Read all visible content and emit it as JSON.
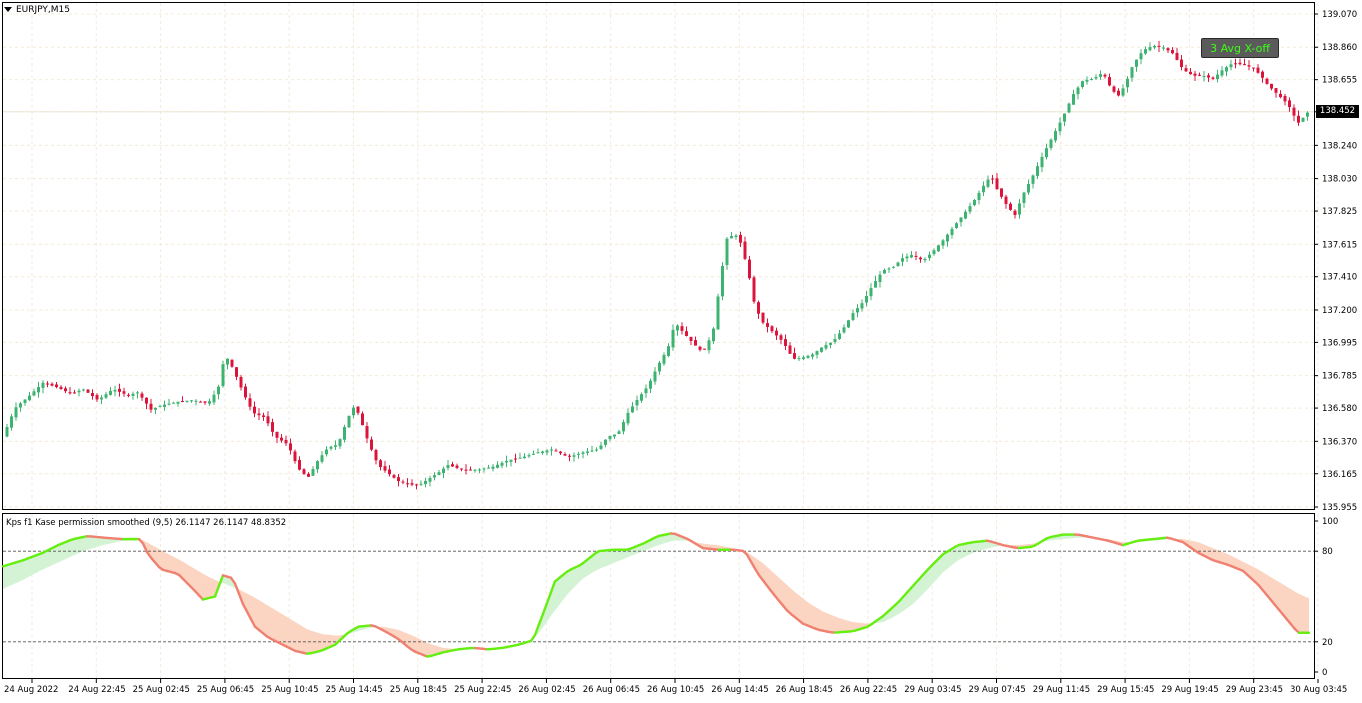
{
  "chart_header": {
    "symbol_label": "EURJPY,M15"
  },
  "indicator_header": {
    "label": "Kps f1 Kase permission smoothed (9,5) 26.1147 26.1147 48.8352"
  },
  "signal_button": {
    "label": "3 Avg X-off"
  },
  "current_price": {
    "label": "138.452"
  },
  "colors": {
    "bull": "#3cb371",
    "bear": "#dc143c",
    "grid": "#f3ead8",
    "fast_up": "#66ee11",
    "fast_down": "#f08070",
    "fill_up": "#d4f3d4",
    "fill_down": "#fbd5c2"
  },
  "chart_data": [
    {
      "type": "candlestick",
      "symbol": "EURJPY",
      "timeframe": "M15",
      "y_ticks": [
        "139.070",
        "138.860",
        "138.655",
        "138.452",
        "138.240",
        "138.030",
        "137.825",
        "137.615",
        "137.410",
        "137.200",
        "136.995",
        "136.785",
        "136.580",
        "136.370",
        "136.165",
        "135.955"
      ],
      "ylim": [
        135.955,
        139.07
      ],
      "x_ticks": [
        "24 Aug 2022",
        "24 Aug 22:45",
        "25 Aug 02:45",
        "25 Aug 06:45",
        "25 Aug 10:45",
        "25 Aug 14:45",
        "25 Aug 18:45",
        "25 Aug 22:45",
        "26 Aug 02:45",
        "26 Aug 06:45",
        "26 Aug 10:45",
        "26 Aug 14:45",
        "26 Aug 18:45",
        "26 Aug 22:45",
        "29 Aug 03:45",
        "29 Aug 07:45",
        "29 Aug 11:45",
        "29 Aug 15:45",
        "29 Aug 19:45",
        "29 Aug 23:45",
        "30 Aug 03:45"
      ],
      "close_path": [
        [
          0,
          136.4
        ],
        [
          12,
          136.58
        ],
        [
          25,
          136.65
        ],
        [
          40,
          136.74
        ],
        [
          55,
          136.71
        ],
        [
          68,
          136.67
        ],
        [
          80,
          136.7
        ],
        [
          95,
          136.63
        ],
        [
          110,
          136.7
        ],
        [
          125,
          136.66
        ],
        [
          135,
          136.68
        ],
        [
          148,
          136.57
        ],
        [
          160,
          136.6
        ],
        [
          175,
          136.62
        ],
        [
          190,
          136.63
        ],
        [
          205,
          136.61
        ],
        [
          215,
          136.7
        ],
        [
          222,
          136.92
        ],
        [
          230,
          136.83
        ],
        [
          240,
          136.68
        ],
        [
          250,
          136.55
        ],
        [
          262,
          136.52
        ],
        [
          272,
          136.4
        ],
        [
          285,
          136.35
        ],
        [
          295,
          136.2
        ],
        [
          305,
          136.14
        ],
        [
          315,
          136.25
        ],
        [
          325,
          136.33
        ],
        [
          335,
          136.35
        ],
        [
          345,
          136.52
        ],
        [
          352,
          136.6
        ],
        [
          358,
          136.5
        ],
        [
          365,
          136.37
        ],
        [
          375,
          136.22
        ],
        [
          385,
          136.17
        ],
        [
          395,
          136.12
        ],
        [
          405,
          136.1
        ],
        [
          415,
          136.09
        ],
        [
          425,
          136.13
        ],
        [
          435,
          136.17
        ],
        [
          445,
          136.22
        ],
        [
          460,
          136.19
        ],
        [
          475,
          136.19
        ],
        [
          490,
          136.21
        ],
        [
          505,
          136.25
        ],
        [
          520,
          136.27
        ],
        [
          535,
          136.3
        ],
        [
          550,
          136.32
        ],
        [
          565,
          136.27
        ],
        [
          580,
          136.3
        ],
        [
          595,
          136.32
        ],
        [
          605,
          136.4
        ],
        [
          615,
          136.42
        ],
        [
          625,
          136.55
        ],
        [
          635,
          136.64
        ],
        [
          645,
          136.72
        ],
        [
          655,
          136.85
        ],
        [
          665,
          136.96
        ],
        [
          672,
          137.12
        ],
        [
          680,
          137.06
        ],
        [
          690,
          136.99
        ],
        [
          700,
          136.93
        ],
        [
          710,
          137.06
        ],
        [
          718,
          137.42
        ],
        [
          724,
          137.65
        ],
        [
          732,
          137.68
        ],
        [
          738,
          137.62
        ],
        [
          745,
          137.45
        ],
        [
          752,
          137.22
        ],
        [
          760,
          137.12
        ],
        [
          770,
          137.06
        ],
        [
          780,
          137.0
        ],
        [
          790,
          136.89
        ],
        [
          800,
          136.9
        ],
        [
          810,
          136.92
        ],
        [
          820,
          136.97
        ],
        [
          830,
          137.0
        ],
        [
          840,
          137.08
        ],
        [
          850,
          137.18
        ],
        [
          860,
          137.25
        ],
        [
          870,
          137.36
        ],
        [
          880,
          137.45
        ],
        [
          890,
          137.47
        ],
        [
          900,
          137.53
        ],
        [
          910,
          137.55
        ],
        [
          920,
          137.51
        ],
        [
          930,
          137.57
        ],
        [
          940,
          137.64
        ],
        [
          950,
          137.72
        ],
        [
          960,
          137.8
        ],
        [
          970,
          137.88
        ],
        [
          980,
          137.98
        ],
        [
          988,
          138.05
        ],
        [
          995,
          137.95
        ],
        [
          1005,
          137.85
        ],
        [
          1012,
          137.8
        ],
        [
          1020,
          137.93
        ],
        [
          1030,
          138.05
        ],
        [
          1040,
          138.18
        ],
        [
          1050,
          138.3
        ],
        [
          1060,
          138.42
        ],
        [
          1070,
          138.56
        ],
        [
          1080,
          138.65
        ],
        [
          1090,
          138.66
        ],
        [
          1100,
          138.7
        ],
        [
          1108,
          138.6
        ],
        [
          1115,
          138.55
        ],
        [
          1122,
          138.62
        ],
        [
          1130,
          138.75
        ],
        [
          1140,
          138.84
        ],
        [
          1150,
          138.87
        ],
        [
          1160,
          138.86
        ],
        [
          1170,
          138.82
        ],
        [
          1180,
          138.72
        ],
        [
          1190,
          138.68
        ],
        [
          1200,
          138.68
        ],
        [
          1210,
          138.66
        ],
        [
          1220,
          138.72
        ],
        [
          1230,
          138.76
        ],
        [
          1240,
          138.75
        ],
        [
          1250,
          138.73
        ],
        [
          1258,
          138.68
        ],
        [
          1265,
          138.62
        ],
        [
          1275,
          138.56
        ],
        [
          1285,
          138.5
        ],
        [
          1295,
          138.38
        ],
        [
          1305,
          138.45
        ]
      ]
    },
    {
      "type": "line",
      "title": "Kps f1 Kase permission smoothed (9,5)",
      "values_shown": [
        26.1147,
        26.1147,
        48.8352
      ],
      "y_ticks": [
        "100",
        "80",
        "20",
        "0"
      ],
      "levels": [
        80,
        20
      ],
      "ylim": [
        0,
        100
      ],
      "fast": [
        [
          0,
          70
        ],
        [
          20,
          74
        ],
        [
          40,
          79
        ],
        [
          55,
          84
        ],
        [
          70,
          88
        ],
        [
          85,
          90
        ],
        [
          100,
          89
        ],
        [
          120,
          88
        ],
        [
          138,
          88
        ],
        [
          145,
          78
        ],
        [
          158,
          68
        ],
        [
          175,
          65
        ],
        [
          190,
          55
        ],
        [
          200,
          48
        ],
        [
          212,
          50
        ],
        [
          220,
          64
        ],
        [
          230,
          62
        ],
        [
          240,
          45
        ],
        [
          252,
          30
        ],
        [
          265,
          23
        ],
        [
          280,
          18
        ],
        [
          292,
          14
        ],
        [
          305,
          12
        ],
        [
          318,
          14
        ],
        [
          332,
          18
        ],
        [
          345,
          26
        ],
        [
          355,
          30
        ],
        [
          370,
          31
        ],
        [
          382,
          27
        ],
        [
          395,
          22
        ],
        [
          410,
          14
        ],
        [
          425,
          10
        ],
        [
          440,
          13
        ],
        [
          455,
          15
        ],
        [
          470,
          16
        ],
        [
          485,
          15
        ],
        [
          500,
          16
        ],
        [
          515,
          18
        ],
        [
          530,
          21
        ],
        [
          542,
          42
        ],
        [
          552,
          60
        ],
        [
          565,
          67
        ],
        [
          578,
          71
        ],
        [
          595,
          80
        ],
        [
          610,
          81
        ],
        [
          625,
          81
        ],
        [
          640,
          85
        ],
        [
          655,
          90
        ],
        [
          670,
          92
        ],
        [
          685,
          88
        ],
        [
          700,
          82
        ],
        [
          715,
          81
        ],
        [
          730,
          81
        ],
        [
          742,
          80
        ],
        [
          755,
          65
        ],
        [
          770,
          52
        ],
        [
          785,
          40
        ],
        [
          800,
          32
        ],
        [
          815,
          28
        ],
        [
          830,
          26
        ],
        [
          850,
          27
        ],
        [
          865,
          30
        ],
        [
          880,
          37
        ],
        [
          895,
          46
        ],
        [
          910,
          57
        ],
        [
          925,
          68
        ],
        [
          940,
          78
        ],
        [
          955,
          84
        ],
        [
          970,
          86
        ],
        [
          985,
          87
        ],
        [
          1000,
          84
        ],
        [
          1015,
          82
        ],
        [
          1030,
          83
        ],
        [
          1045,
          89
        ],
        [
          1060,
          91
        ],
        [
          1075,
          91
        ],
        [
          1090,
          89
        ],
        [
          1105,
          87
        ],
        [
          1120,
          84
        ],
        [
          1135,
          87
        ],
        [
          1150,
          88
        ],
        [
          1165,
          89
        ],
        [
          1180,
          86
        ],
        [
          1195,
          79
        ],
        [
          1210,
          74
        ],
        [
          1225,
          71
        ],
        [
          1240,
          67
        ],
        [
          1255,
          58
        ],
        [
          1270,
          46
        ],
        [
          1285,
          34
        ],
        [
          1295,
          26
        ],
        [
          1305,
          26
        ]
      ],
      "slow": [
        [
          0,
          55
        ],
        [
          20,
          61
        ],
        [
          40,
          68
        ],
        [
          60,
          74
        ],
        [
          80,
          80
        ],
        [
          100,
          84
        ],
        [
          120,
          87
        ],
        [
          138,
          88
        ],
        [
          160,
          80
        ],
        [
          180,
          73
        ],
        [
          200,
          65
        ],
        [
          215,
          60
        ],
        [
          235,
          55
        ],
        [
          250,
          50
        ],
        [
          270,
          42
        ],
        [
          290,
          34
        ],
        [
          305,
          28
        ],
        [
          320,
          25
        ],
        [
          335,
          24
        ],
        [
          350,
          26
        ],
        [
          365,
          29
        ],
        [
          380,
          30
        ],
        [
          395,
          28
        ],
        [
          410,
          24
        ],
        [
          425,
          19
        ],
        [
          440,
          16
        ],
        [
          455,
          15
        ],
        [
          470,
          15
        ],
        [
          485,
          15
        ],
        [
          500,
          16
        ],
        [
          520,
          18
        ],
        [
          535,
          25
        ],
        [
          550,
          39
        ],
        [
          565,
          52
        ],
        [
          580,
          62
        ],
        [
          595,
          68
        ],
        [
          610,
          72
        ],
        [
          625,
          76
        ],
        [
          640,
          80
        ],
        [
          655,
          84
        ],
        [
          670,
          87
        ],
        [
          685,
          87
        ],
        [
          700,
          85
        ],
        [
          715,
          84
        ],
        [
          730,
          82
        ],
        [
          745,
          79
        ],
        [
          760,
          72
        ],
        [
          775,
          63
        ],
        [
          790,
          54
        ],
        [
          805,
          46
        ],
        [
          820,
          40
        ],
        [
          835,
          36
        ],
        [
          850,
          33
        ],
        [
          865,
          32
        ],
        [
          880,
          33
        ],
        [
          895,
          38
        ],
        [
          910,
          45
        ],
        [
          925,
          55
        ],
        [
          940,
          66
        ],
        [
          955,
          74
        ],
        [
          970,
          79
        ],
        [
          985,
          82
        ],
        [
          1000,
          84
        ],
        [
          1015,
          84
        ],
        [
          1030,
          85
        ],
        [
          1045,
          87
        ],
        [
          1060,
          88
        ],
        [
          1075,
          89
        ],
        [
          1090,
          89
        ],
        [
          1105,
          88
        ],
        [
          1120,
          86
        ],
        [
          1135,
          86
        ],
        [
          1150,
          87
        ],
        [
          1165,
          88
        ],
        [
          1180,
          88
        ],
        [
          1195,
          86
        ],
        [
          1210,
          82
        ],
        [
          1225,
          78
        ],
        [
          1240,
          73
        ],
        [
          1255,
          68
        ],
        [
          1270,
          62
        ],
        [
          1285,
          56
        ],
        [
          1295,
          52
        ],
        [
          1305,
          49
        ]
      ]
    }
  ]
}
